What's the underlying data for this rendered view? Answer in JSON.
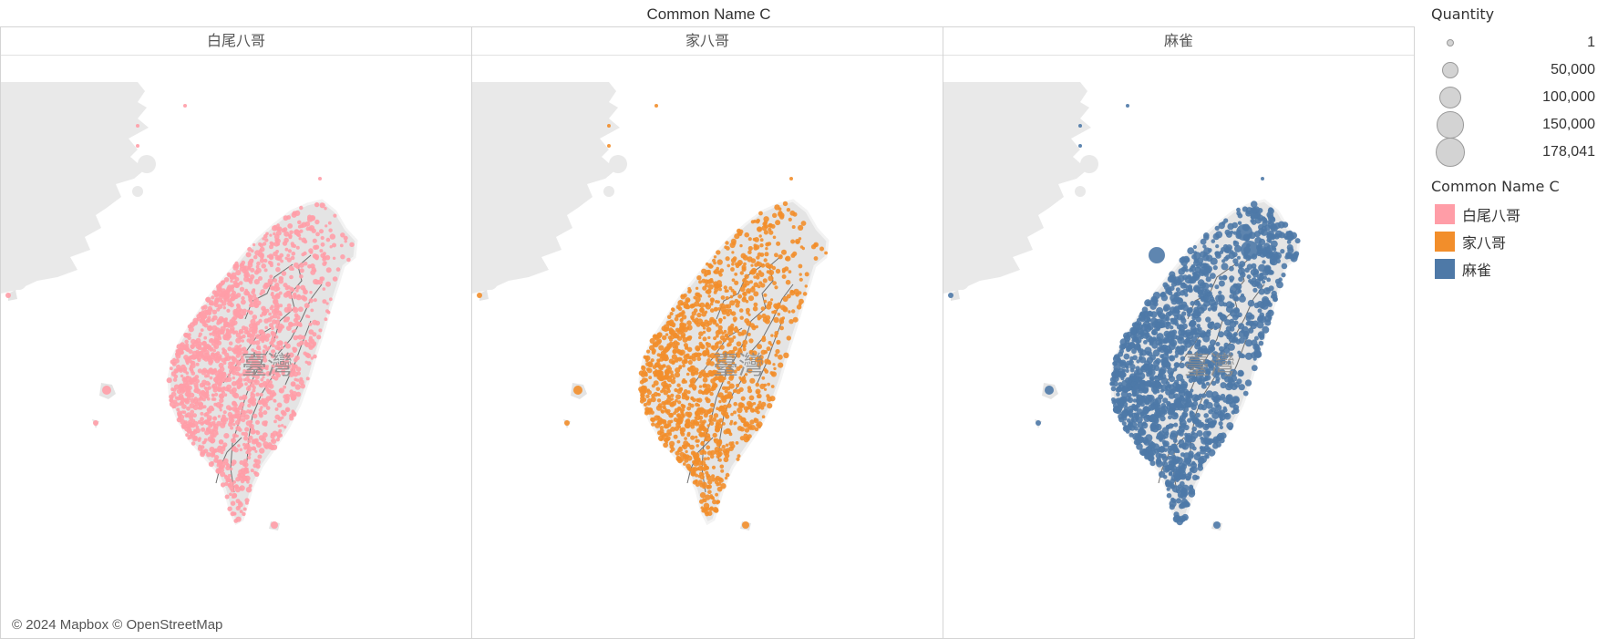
{
  "header": {
    "title": "Common Name C"
  },
  "panels": [
    {
      "label": "白尾八哥",
      "color": "#ff9da7",
      "map_text": "臺灣"
    },
    {
      "label": "家八哥",
      "color": "#f28e2b",
      "map_text": "臺灣"
    },
    {
      "label": "麻雀",
      "color": "#4e79a7",
      "map_text": "臺灣"
    }
  ],
  "attribution": "© 2024 Mapbox © OpenStreetMap",
  "legend": {
    "size_title": "Quantity",
    "sizes": [
      {
        "label": "1",
        "value": 1
      },
      {
        "label": "50,000",
        "value": 50000
      },
      {
        "label": "100,000",
        "value": 100000
      },
      {
        "label": "150,000",
        "value": 150000
      },
      {
        "label": "178,041",
        "value": 178041
      }
    ],
    "color_title": "Common Name C",
    "colors": [
      {
        "label": "白尾八哥",
        "color": "#ff9da7"
      },
      {
        "label": "家八哥",
        "color": "#f28e2b"
      },
      {
        "label": "麻雀",
        "color": "#4e79a7"
      }
    ]
  },
  "theme": {
    "land": "#e4e4e4",
    "mainland": "#e9e9e9",
    "border": "#ffffff",
    "river": "#6e6e6e"
  }
}
